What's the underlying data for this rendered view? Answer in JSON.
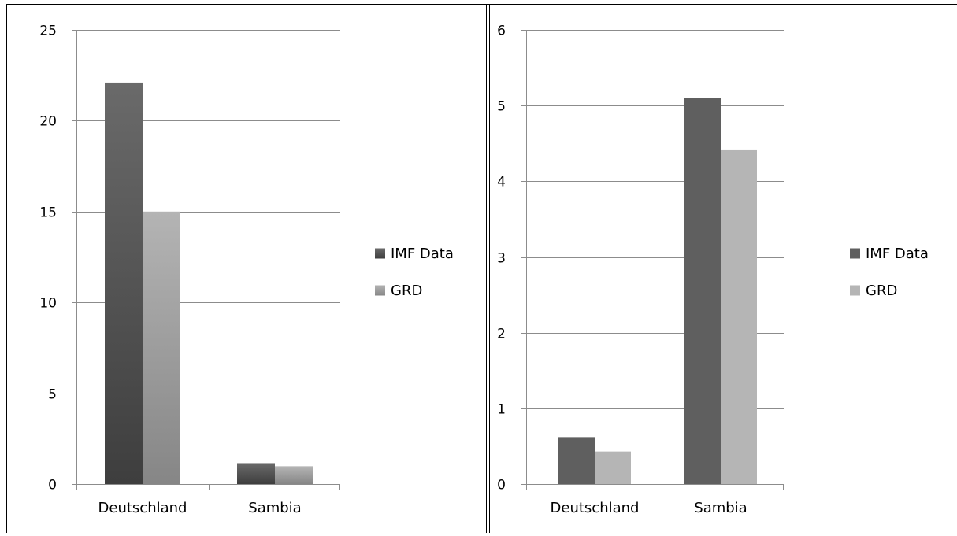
{
  "chart_data": [
    {
      "type": "bar",
      "categories": [
        "Deutschland",
        "Sambia"
      ],
      "series": [
        {
          "name": "IMF Data",
          "values": [
            22.1,
            1.15
          ]
        },
        {
          "name": "GRD",
          "values": [
            15.0,
            0.98
          ]
        }
      ],
      "ylim": [
        0,
        25
      ],
      "yticks": [
        "0",
        "5",
        "10",
        "15",
        "20",
        "25"
      ],
      "grid": true,
      "legend": "right",
      "colors": {
        "IMF Data": "#505050",
        "GRD": "#9a9a9a"
      },
      "style": "gradient"
    },
    {
      "type": "bar",
      "categories": [
        "Deutschland",
        "Sambia"
      ],
      "series": [
        {
          "name": "IMF Data",
          "values": [
            0.62,
            5.1
          ]
        },
        {
          "name": "GRD",
          "values": [
            0.43,
            4.42
          ]
        }
      ],
      "ylim": [
        0,
        6
      ],
      "yticks": [
        "0",
        "1",
        "2",
        "3",
        "4",
        "5",
        "6"
      ],
      "grid": true,
      "legend": "right",
      "colors": {
        "IMF Data": "#5f5f5f",
        "GRD": "#b5b5b5"
      },
      "style": "flat"
    }
  ]
}
